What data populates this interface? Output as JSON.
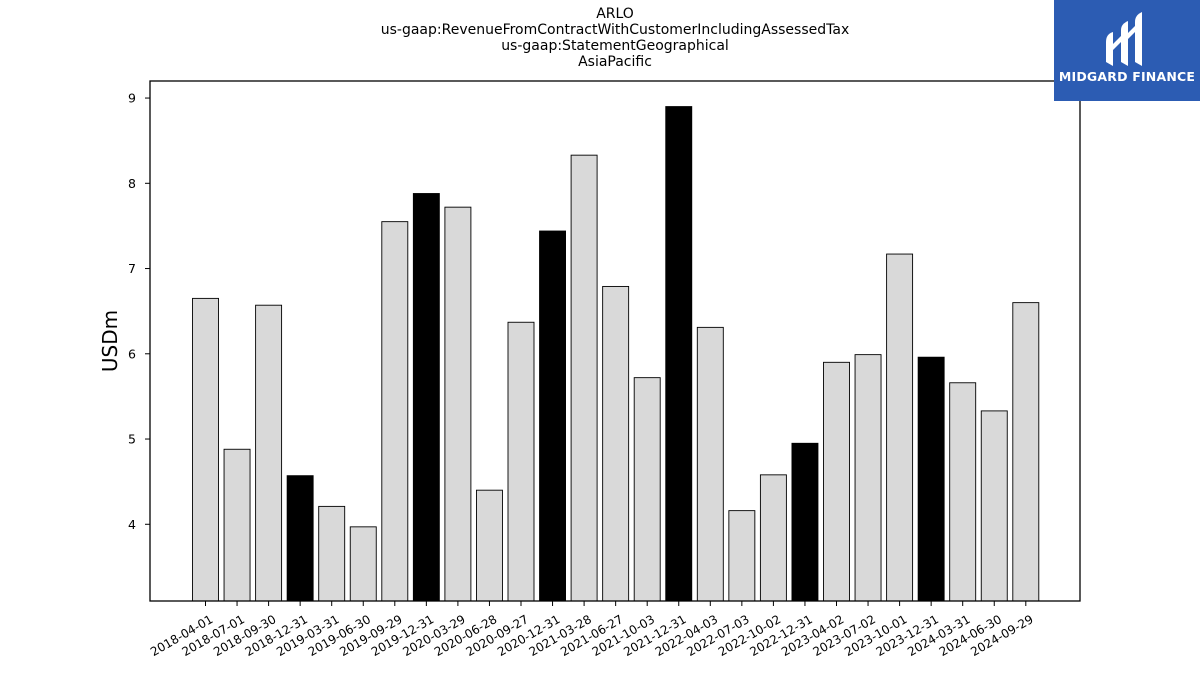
{
  "chart_data": {
    "type": "bar",
    "title": "ARLO",
    "subtitle_lines": [
      "us-gaap:RevenueFromContractWithCustomerIncludingAssessedTax",
      "us-gaap:StatementGeographical",
      "AsiaPacific"
    ],
    "xlabel": "",
    "ylabel": "USDm",
    "ylim": [
      3.1,
      9.2
    ],
    "yticks": [
      4,
      5,
      6,
      7,
      8,
      9
    ],
    "grid": false,
    "colors": {
      "quarter": "#d9d9d9",
      "year_end": "#000000",
      "edge": "#000000"
    },
    "categories": [
      "2018-04-01",
      "2018-07-01",
      "2018-09-30",
      "2018-12-31",
      "2019-03-31",
      "2019-06-30",
      "2019-09-29",
      "2019-12-31",
      "2020-03-29",
      "2020-06-28",
      "2020-09-27",
      "2020-12-31",
      "2021-03-28",
      "2021-06-27",
      "2021-10-03",
      "2021-12-31",
      "2022-04-03",
      "2022-07-03",
      "2022-10-02",
      "2022-12-31",
      "2023-04-02",
      "2023-07-02",
      "2023-10-01",
      "2023-12-31",
      "2024-03-31",
      "2024-06-30",
      "2024-09-29"
    ],
    "values": [
      6.65,
      4.88,
      6.57,
      4.57,
      4.21,
      3.97,
      7.55,
      7.88,
      7.72,
      4.4,
      6.37,
      7.44,
      8.33,
      6.79,
      5.72,
      8.9,
      6.31,
      4.16,
      4.58,
      4.95,
      5.9,
      5.99,
      7.17,
      5.96,
      5.66,
      5.33,
      6.6
    ],
    "highlight": [
      false,
      false,
      false,
      true,
      false,
      false,
      false,
      true,
      false,
      false,
      false,
      true,
      false,
      false,
      false,
      true,
      false,
      false,
      false,
      true,
      false,
      false,
      false,
      true,
      false,
      false,
      false
    ]
  },
  "logo": {
    "text": "MIDGARD FINANCE",
    "background": "#2c5cb3"
  }
}
